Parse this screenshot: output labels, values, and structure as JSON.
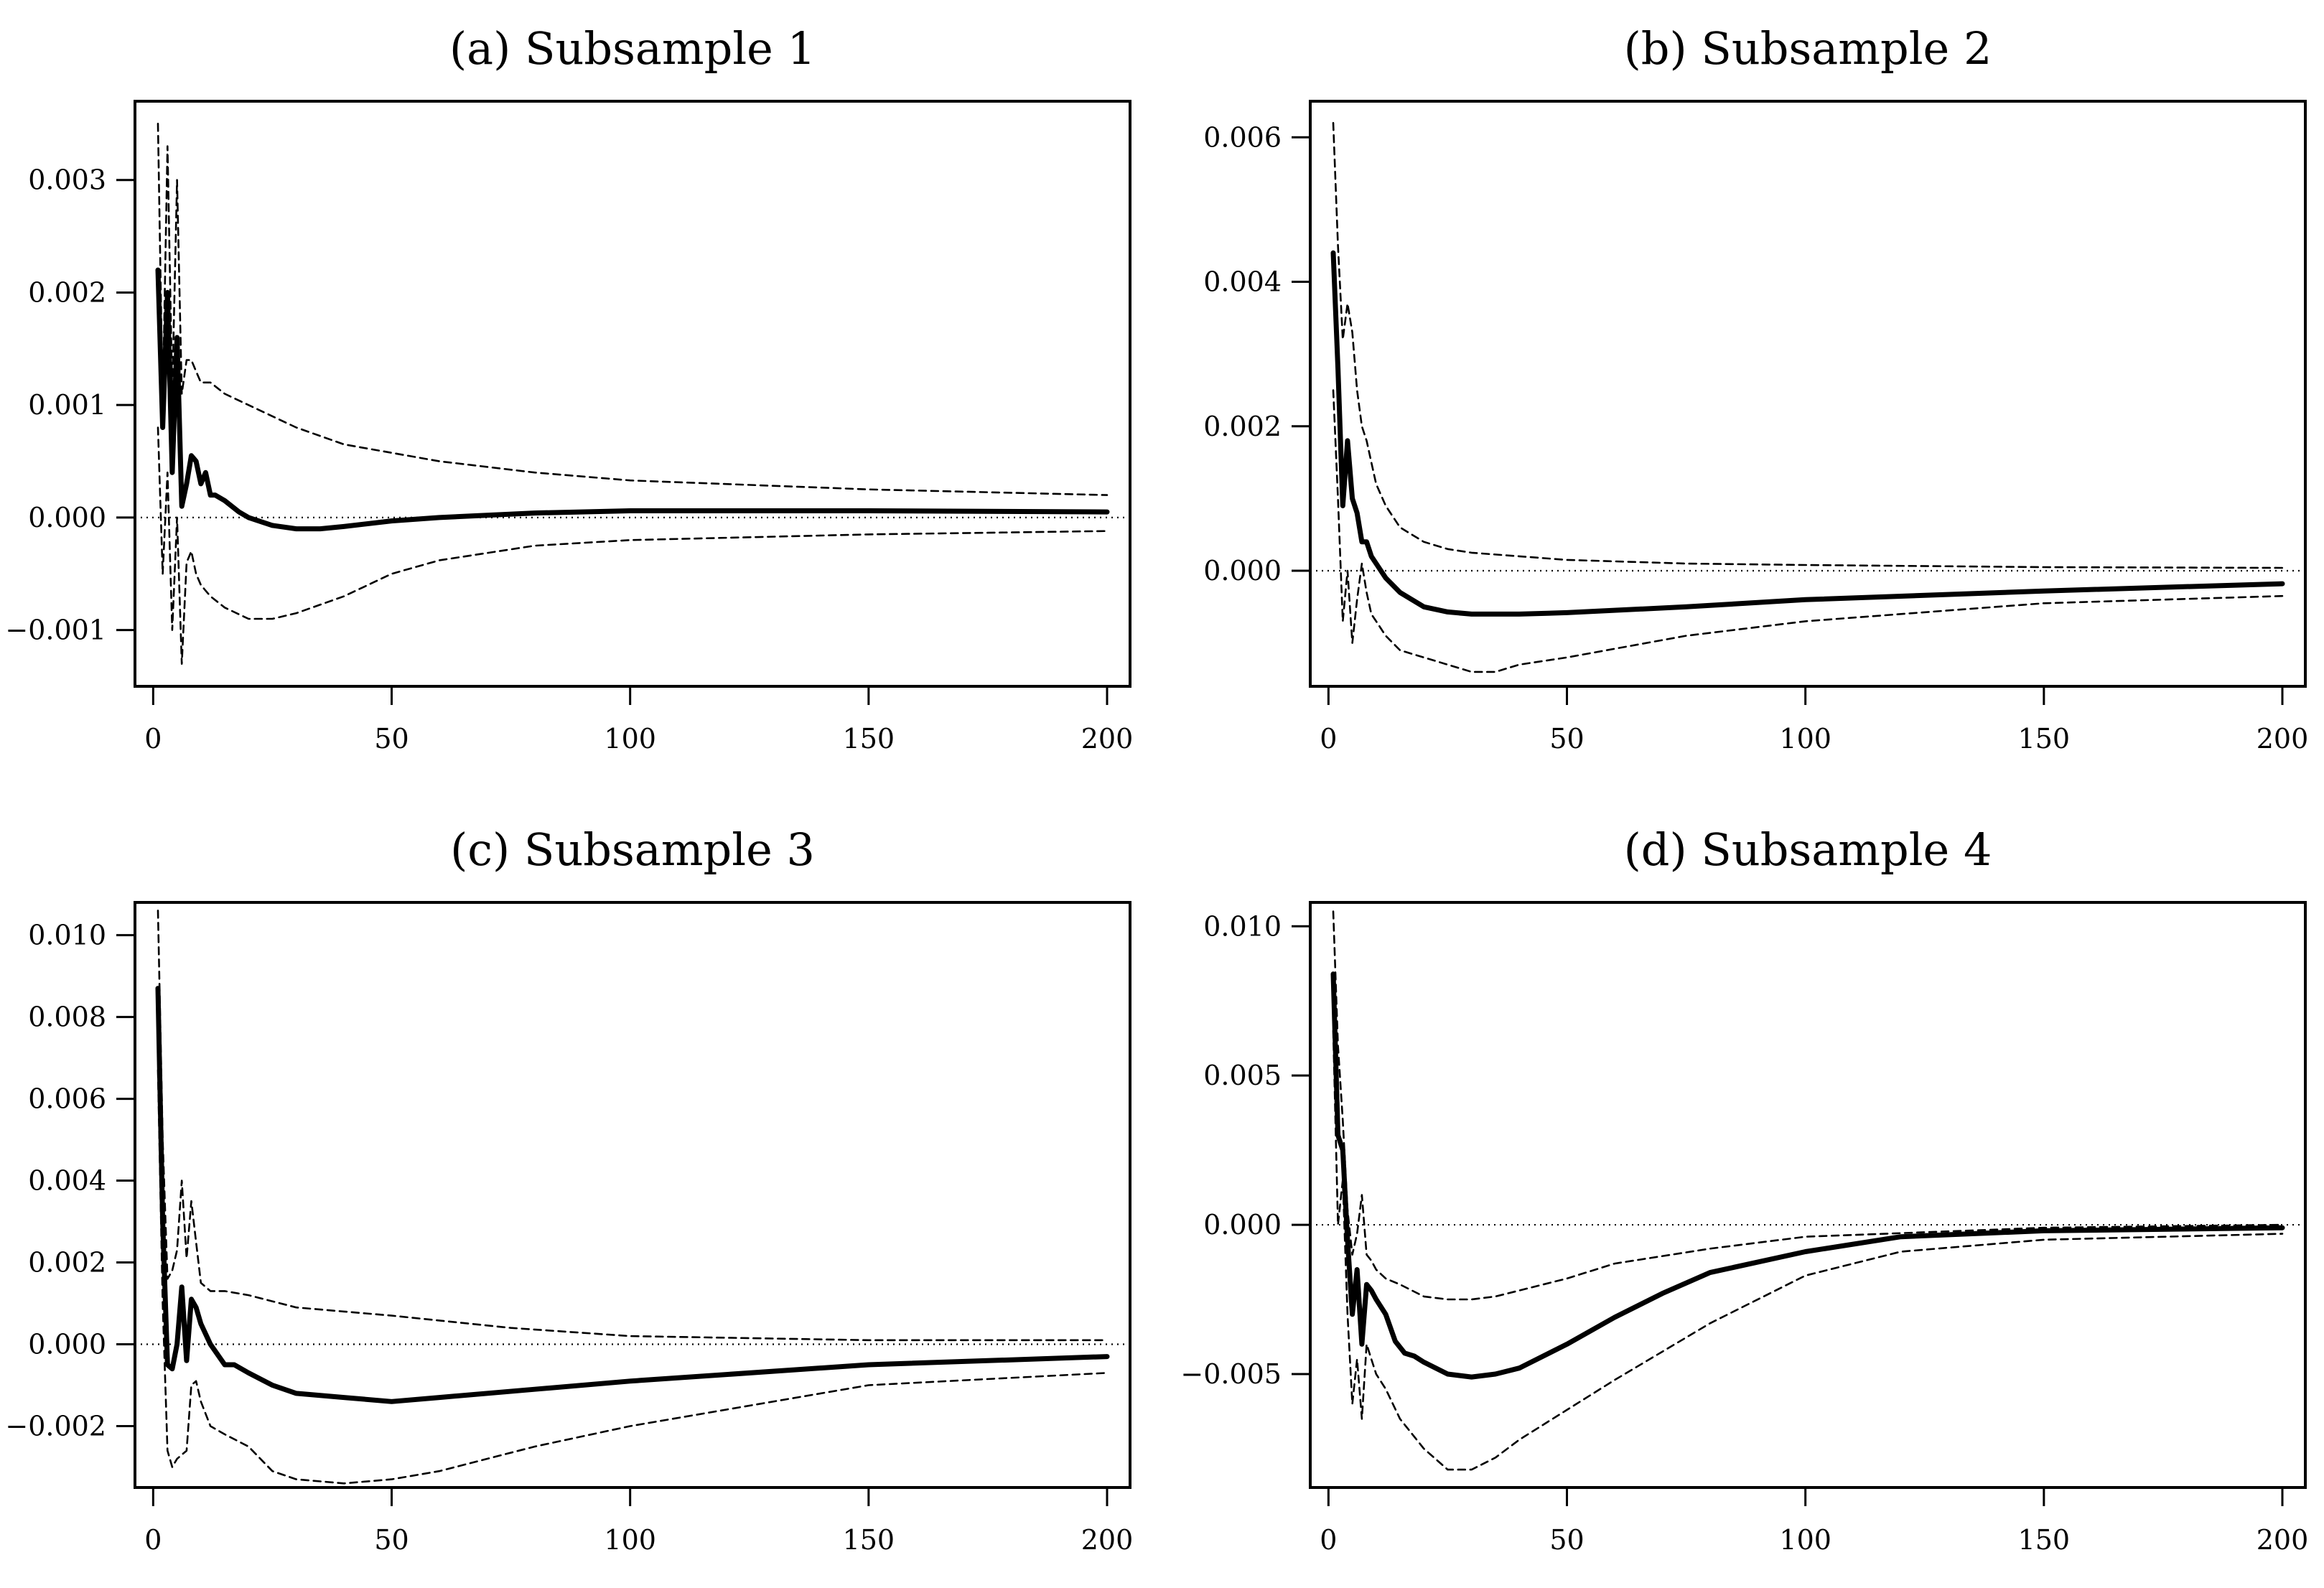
{
  "chart_data": [
    {
      "type": "line",
      "title": "(a) Subsample 1",
      "xlabel": "",
      "ylabel": "",
      "xlim": [
        1,
        200
      ],
      "ylim": [
        -0.0015,
        0.0037
      ],
      "x_ticks": [
        0,
        50,
        100,
        150,
        200
      ],
      "x_tick_labels": [
        "0",
        "50",
        "100",
        "150",
        "200"
      ],
      "y_ticks": [
        -0.001,
        0.0,
        0.001,
        0.002,
        0.003
      ],
      "y_tick_labels": [
        "−0.001",
        "0.000",
        "0.001",
        "0.002",
        "0.003"
      ],
      "grid": false,
      "reference_line": 0,
      "series": [
        {
          "name": "response",
          "style": "solid",
          "x": [
            1,
            2,
            3,
            4,
            5,
            6,
            7,
            8,
            9,
            10,
            11,
            12,
            13,
            15,
            18,
            20,
            25,
            30,
            35,
            40,
            50,
            60,
            80,
            100,
            150,
            200
          ],
          "values": [
            0.0022,
            0.0008,
            0.002,
            0.0004,
            0.0016,
            0.0001,
            0.0003,
            0.00055,
            0.0005,
            0.0003,
            0.0004,
            0.0002,
            0.0002,
            0.00015,
            5e-05,
            0.0,
            -7e-05,
            -0.0001,
            -0.0001,
            -8e-05,
            -3e-05,
            0.0,
            4e-05,
            6e-05,
            6e-05,
            5e-05
          ]
        },
        {
          "name": "upper band",
          "style": "dashed",
          "x": [
            1,
            2,
            3,
            4,
            5,
            6,
            7,
            8,
            9,
            10,
            12,
            15,
            20,
            30,
            40,
            60,
            80,
            100,
            150,
            200
          ],
          "values": [
            0.0035,
            0.001,
            0.0033,
            0.0011,
            0.003,
            0.0011,
            0.0014,
            0.0014,
            0.0013,
            0.0012,
            0.0012,
            0.0011,
            0.001,
            0.0008,
            0.00065,
            0.0005,
            0.0004,
            0.00033,
            0.00025,
            0.0002
          ]
        },
        {
          "name": "lower band",
          "style": "dashed",
          "x": [
            1,
            2,
            3,
            4,
            5,
            6,
            7,
            8,
            9,
            10,
            12,
            15,
            20,
            25,
            30,
            40,
            50,
            60,
            80,
            100,
            150,
            200
          ],
          "values": [
            0.0008,
            -0.0005,
            0.0004,
            -0.001,
            0.0,
            -0.0013,
            -0.0004,
            -0.0003,
            -0.0005,
            -0.0006,
            -0.0007,
            -0.0008,
            -0.0009,
            -0.0009,
            -0.00085,
            -0.0007,
            -0.0005,
            -0.00038,
            -0.00025,
            -0.0002,
            -0.00015,
            -0.00012
          ]
        }
      ]
    },
    {
      "type": "line",
      "title": "(b) Subsample 2",
      "xlabel": "",
      "ylabel": "",
      "xlim": [
        1,
        200
      ],
      "ylim": [
        -0.0016,
        0.0065
      ],
      "x_ticks": [
        0,
        50,
        100,
        150,
        200
      ],
      "x_tick_labels": [
        "0",
        "50",
        "100",
        "150",
        "200"
      ],
      "y_ticks": [
        0.0,
        0.002,
        0.004,
        0.006
      ],
      "y_tick_labels": [
        "0.000",
        "0.002",
        "0.004",
        "0.006"
      ],
      "grid": false,
      "reference_line": 0,
      "series": [
        {
          "name": "response",
          "style": "solid",
          "x": [
            1,
            2,
            3,
            4,
            5,
            6,
            7,
            8,
            9,
            10,
            12,
            15,
            20,
            25,
            30,
            40,
            50,
            75,
            100,
            150,
            200
          ],
          "values": [
            0.0044,
            0.0028,
            0.0009,
            0.0018,
            0.001,
            0.0008,
            0.0004,
            0.0004,
            0.0002,
            0.0001,
            -0.0001,
            -0.0003,
            -0.0005,
            -0.00057,
            -0.0006,
            -0.0006,
            -0.00058,
            -0.0005,
            -0.0004,
            -0.00028,
            -0.00018
          ]
        },
        {
          "name": "upper band",
          "style": "dashed",
          "x": [
            1,
            2,
            3,
            4,
            5,
            6,
            7,
            8,
            9,
            10,
            12,
            15,
            20,
            25,
            30,
            40,
            50,
            75,
            100,
            150,
            200
          ],
          "values": [
            0.0062,
            0.0045,
            0.0032,
            0.0037,
            0.0033,
            0.0025,
            0.002,
            0.0018,
            0.0015,
            0.0012,
            0.0009,
            0.0006,
            0.0004,
            0.0003,
            0.00025,
            0.0002,
            0.00015,
            0.0001,
            8e-05,
            5e-05,
            4e-05
          ]
        },
        {
          "name": "lower band",
          "style": "dashed",
          "x": [
            1,
            2,
            3,
            4,
            5,
            6,
            7,
            8,
            9,
            10,
            12,
            15,
            20,
            25,
            30,
            35,
            40,
            50,
            75,
            100,
            150,
            200
          ],
          "values": [
            0.0025,
            0.001,
            -0.0007,
            0.0,
            -0.001,
            -0.0004,
            0.0001,
            -0.0003,
            -0.0006,
            -0.0007,
            -0.0009,
            -0.0011,
            -0.0012,
            -0.0013,
            -0.0014,
            -0.0014,
            -0.0013,
            -0.0012,
            -0.0009,
            -0.0007,
            -0.00045,
            -0.00035
          ]
        }
      ]
    },
    {
      "type": "line",
      "title": "(c) Subsample 3",
      "xlabel": "",
      "ylabel": "",
      "xlim": [
        1,
        200
      ],
      "ylim": [
        -0.0035,
        0.0108
      ],
      "x_ticks": [
        0,
        50,
        100,
        150,
        200
      ],
      "x_tick_labels": [
        "0",
        "50",
        "100",
        "150",
        "200"
      ],
      "y_ticks": [
        -0.002,
        0.0,
        0.002,
        0.004,
        0.006,
        0.008,
        0.01
      ],
      "y_tick_labels": [
        "−0.002",
        "0.000",
        "0.002",
        "0.004",
        "0.006",
        "0.008",
        "0.010"
      ],
      "grid": false,
      "reference_line": 0,
      "series": [
        {
          "name": "response",
          "style": "solid",
          "x": [
            1,
            2,
            3,
            4,
            5,
            6,
            7,
            8,
            9,
            10,
            12,
            15,
            17,
            20,
            25,
            30,
            40,
            50,
            60,
            80,
            100,
            150,
            200
          ],
          "values": [
            0.0087,
            0.003,
            -0.0005,
            -0.0006,
            0.0,
            0.0014,
            -0.0004,
            0.0011,
            0.0009,
            0.0005,
            0.0,
            -0.0005,
            -0.0005,
            -0.0007,
            -0.001,
            -0.0012,
            -0.0013,
            -0.0014,
            -0.0013,
            -0.0011,
            -0.0009,
            -0.0005,
            -0.0003
          ]
        },
        {
          "name": "upper band",
          "style": "dashed",
          "x": [
            1,
            2,
            3,
            4,
            5,
            6,
            7,
            8,
            9,
            10,
            12,
            15,
            20,
            30,
            40,
            50,
            75,
            100,
            150,
            200
          ],
          "values": [
            0.0106,
            0.005,
            0.0016,
            0.0018,
            0.0023,
            0.004,
            0.0021,
            0.0035,
            0.0025,
            0.0015,
            0.0013,
            0.0013,
            0.0012,
            0.0009,
            0.0008,
            0.0007,
            0.0004,
            0.0002,
            0.0001,
            0.0001
          ]
        },
        {
          "name": "lower band",
          "style": "dashed",
          "x": [
            1,
            2,
            3,
            4,
            5,
            6,
            7,
            8,
            9,
            10,
            12,
            15,
            20,
            25,
            30,
            40,
            50,
            60,
            80,
            100,
            150,
            200
          ],
          "values": [
            0.0067,
            0.001,
            -0.0026,
            -0.003,
            -0.0028,
            -0.0027,
            -0.0026,
            -0.001,
            -0.0009,
            -0.0014,
            -0.002,
            -0.0022,
            -0.0025,
            -0.0031,
            -0.0033,
            -0.0034,
            -0.0033,
            -0.0031,
            -0.0025,
            -0.002,
            -0.001,
            -0.0007
          ]
        }
      ]
    },
    {
      "type": "line",
      "title": "(d) Subsample 4",
      "xlabel": "",
      "ylabel": "",
      "xlim": [
        1,
        200
      ],
      "ylim": [
        -0.0088,
        0.0108
      ],
      "x_ticks": [
        0,
        50,
        100,
        150,
        200
      ],
      "x_tick_labels": [
        "0",
        "50",
        "100",
        "150",
        "200"
      ],
      "y_ticks": [
        -0.005,
        0.0,
        0.005,
        0.01
      ],
      "y_tick_labels": [
        "−0.005",
        "0.000",
        "0.005",
        "0.010"
      ],
      "grid": false,
      "reference_line": 0,
      "series": [
        {
          "name": "response",
          "style": "solid",
          "x": [
            1,
            2,
            3,
            4,
            5,
            6,
            7,
            8,
            9,
            10,
            12,
            14,
            16,
            18,
            20,
            25,
            30,
            35,
            40,
            50,
            60,
            70,
            80,
            100,
            120,
            150,
            200
          ],
          "values": [
            0.0084,
            0.003,
            0.0025,
            -0.0005,
            -0.003,
            -0.0015,
            -0.004,
            -0.002,
            -0.0022,
            -0.0025,
            -0.003,
            -0.0039,
            -0.0043,
            -0.0044,
            -0.0046,
            -0.005,
            -0.0051,
            -0.005,
            -0.0048,
            -0.004,
            -0.0031,
            -0.0023,
            -0.0016,
            -0.0009,
            -0.0004,
            -0.0002,
            -0.0001
          ]
        },
        {
          "name": "upper band",
          "style": "dashed",
          "x": [
            1,
            2,
            3,
            4,
            5,
            6,
            7,
            8,
            9,
            10,
            12,
            15,
            20,
            25,
            30,
            35,
            40,
            50,
            60,
            80,
            100,
            150,
            200
          ],
          "values": [
            0.0105,
            0.006,
            0.0035,
            0.0005,
            -0.001,
            -0.0003,
            0.001,
            -0.001,
            -0.0012,
            -0.0015,
            -0.0018,
            -0.002,
            -0.0024,
            -0.0025,
            -0.0025,
            -0.0024,
            -0.0022,
            -0.0018,
            -0.0013,
            -0.0008,
            -0.0004,
            -0.0001,
            0.0
          ]
        },
        {
          "name": "lower band",
          "style": "dashed",
          "x": [
            1,
            2,
            3,
            4,
            5,
            6,
            7,
            8,
            9,
            10,
            12,
            15,
            20,
            25,
            30,
            35,
            40,
            50,
            60,
            80,
            100,
            120,
            150,
            200
          ],
          "values": [
            0.0065,
            0.0,
            0.0015,
            -0.003,
            -0.006,
            -0.0045,
            -0.0065,
            -0.004,
            -0.0045,
            -0.005,
            -0.0055,
            -0.0065,
            -0.0075,
            -0.0082,
            -0.0082,
            -0.0078,
            -0.0072,
            -0.0062,
            -0.0052,
            -0.0033,
            -0.0017,
            -0.0009,
            -0.0005,
            -0.0003
          ]
        }
      ]
    }
  ]
}
